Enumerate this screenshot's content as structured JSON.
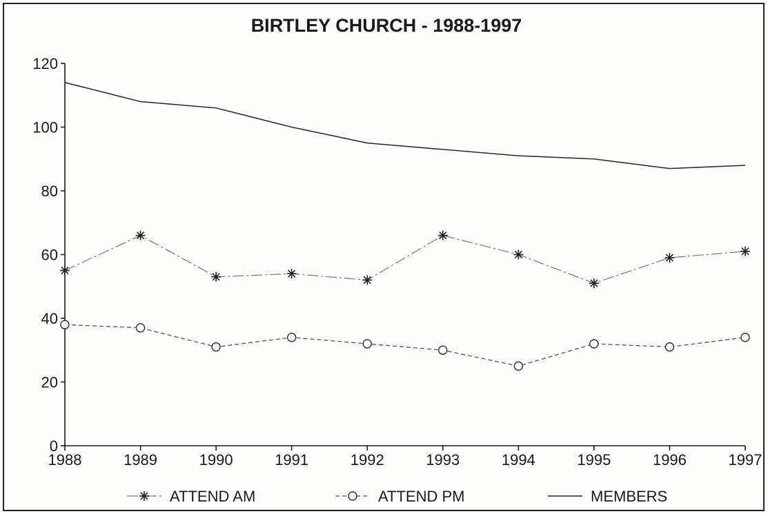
{
  "chart_data": {
    "type": "line",
    "title": "BIRTLEY CHURCH - 1988-1997",
    "xlabel": "",
    "ylabel": "",
    "x": [
      1988,
      1989,
      1990,
      1991,
      1992,
      1993,
      1994,
      1995,
      1996,
      1997
    ],
    "y_ticks": [
      "0",
      "20",
      "40",
      "60",
      "80",
      "100",
      "120"
    ],
    "ylim": [
      0,
      120
    ],
    "grid": false,
    "legend_position": "bottom",
    "series": [
      {
        "name": "ATTEND AM",
        "marker": "asterisk",
        "line": "dash-dot",
        "values": [
          55,
          66,
          53,
          54,
          52,
          66,
          60,
          51,
          59,
          61
        ]
      },
      {
        "name": "ATTEND PM",
        "marker": "circle",
        "line": "dashed",
        "values": [
          38,
          37,
          31,
          34,
          32,
          30,
          25,
          32,
          31,
          34
        ]
      },
      {
        "name": "MEMBERS",
        "marker": "none",
        "line": "solid",
        "values": [
          114,
          108,
          106,
          100,
          95,
          93,
          91,
          90,
          87,
          88
        ]
      }
    ]
  }
}
